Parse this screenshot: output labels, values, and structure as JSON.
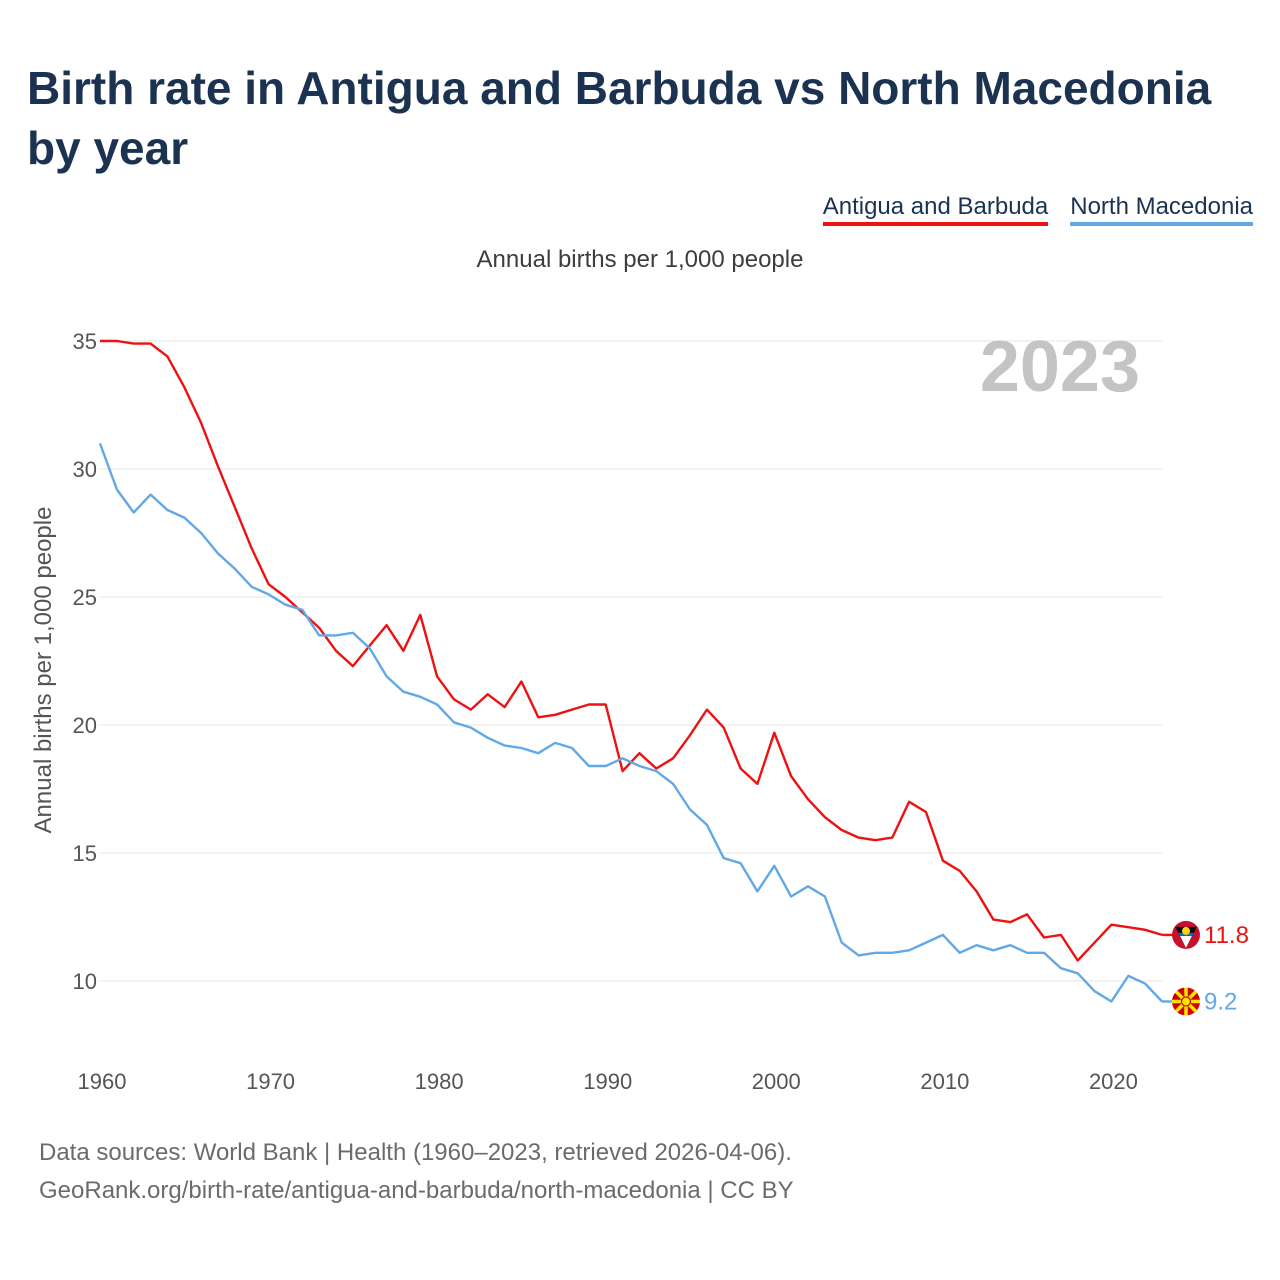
{
  "title": "Birth rate in Antigua and Barbuda vs North Macedonia by year",
  "subtitle": "Annual births per 1,000 people",
  "year_watermark": "2023",
  "legend": [
    {
      "label": "Antigua and Barbuda",
      "color": "#ee1111"
    },
    {
      "label": "North Macedonia",
      "color": "#63a8e6"
    }
  ],
  "footer": {
    "line1": "Data sources: World Bank | Health (1960–2023, retrieved 2026-04-06).",
    "line2": "GeoRank.org/birth-rate/antigua-and-barbuda/north-macedonia | CC BY"
  },
  "chart_data": {
    "type": "line",
    "title": "Birth rate in Antigua and Barbuda vs North Macedonia by year",
    "xlabel": "",
    "ylabel": "Annual births per 1,000 people",
    "xlim": [
      1960,
      2023
    ],
    "ylim": [
      7.5,
      36
    ],
    "xticks": [
      1960,
      1970,
      1980,
      1990,
      2000,
      2010,
      2020
    ],
    "yticks": [
      10,
      15,
      20,
      25,
      30,
      35
    ],
    "grid": true,
    "legend_position": "top-right",
    "x": [
      1960,
      1961,
      1962,
      1963,
      1964,
      1965,
      1966,
      1967,
      1968,
      1969,
      1970,
      1971,
      1972,
      1973,
      1974,
      1975,
      1976,
      1977,
      1978,
      1979,
      1980,
      1981,
      1982,
      1983,
      1984,
      1985,
      1986,
      1987,
      1988,
      1989,
      1990,
      1991,
      1992,
      1993,
      1994,
      1995,
      1996,
      1997,
      1998,
      1999,
      2000,
      2001,
      2002,
      2003,
      2004,
      2005,
      2006,
      2007,
      2008,
      2009,
      2010,
      2011,
      2012,
      2013,
      2014,
      2015,
      2016,
      2017,
      2018,
      2019,
      2020,
      2021,
      2022,
      2023
    ],
    "series": [
      {
        "name": "Antigua and Barbuda",
        "color": "#ee1111",
        "end_label": "11.8",
        "values": [
          35.0,
          35.0,
          34.9,
          34.9,
          34.4,
          33.2,
          31.8,
          30.1,
          28.5,
          26.9,
          25.5,
          25.0,
          24.4,
          23.8,
          22.9,
          22.3,
          23.1,
          23.9,
          22.9,
          24.3,
          21.9,
          21.0,
          20.6,
          21.2,
          20.7,
          21.7,
          20.3,
          20.4,
          20.6,
          20.8,
          20.8,
          18.2,
          18.9,
          18.3,
          18.7,
          19.6,
          20.6,
          19.9,
          18.3,
          17.7,
          19.7,
          18.0,
          17.1,
          16.4,
          15.9,
          15.6,
          15.5,
          15.6,
          17.0,
          16.6,
          14.7,
          14.3,
          13.5,
          12.4,
          12.3,
          12.6,
          11.7,
          11.8,
          10.8,
          11.5,
          12.2,
          12.1,
          12.0,
          11.8
        ]
      },
      {
        "name": "North Macedonia",
        "color": "#63a8e6",
        "end_label": "9.2",
        "values": [
          31.0,
          29.2,
          28.3,
          29.0,
          28.4,
          28.1,
          27.5,
          26.7,
          26.1,
          25.4,
          25.1,
          24.7,
          24.5,
          23.5,
          23.5,
          23.6,
          23.0,
          21.9,
          21.3,
          21.1,
          20.8,
          20.1,
          19.9,
          19.5,
          19.2,
          19.1,
          18.9,
          19.3,
          19.1,
          18.4,
          18.4,
          18.7,
          18.4,
          18.2,
          17.7,
          16.7,
          16.1,
          14.8,
          14.6,
          13.5,
          14.5,
          13.3,
          13.7,
          13.3,
          11.5,
          11.0,
          11.1,
          11.1,
          11.2,
          11.5,
          11.8,
          11.1,
          11.4,
          11.2,
          11.4,
          11.1,
          11.1,
          10.5,
          10.3,
          9.6,
          9.2,
          10.2,
          9.9,
          9.2
        ]
      }
    ]
  }
}
